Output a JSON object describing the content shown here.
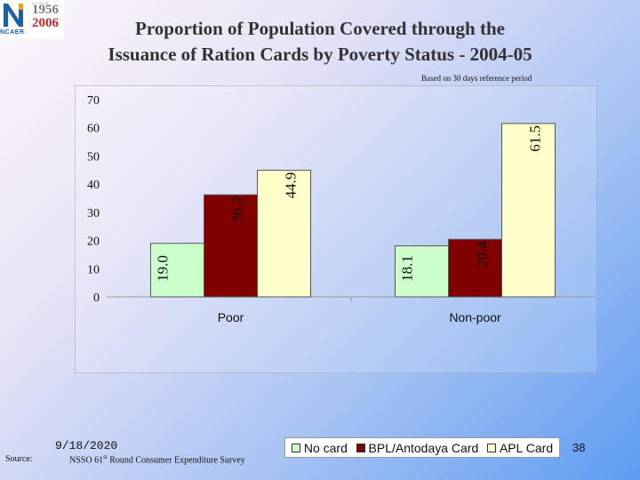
{
  "logo": {
    "org": "NCAER",
    "year_start": "1956",
    "year_end": "2006",
    "tagline": "NCAER"
  },
  "title": {
    "line1": "Proportion of Population Covered through the",
    "line2": "Issuance of Ration Cards by Poverty Status - 2004-05"
  },
  "note": "Based on 30 days reference period",
  "chart_data": {
    "type": "bar",
    "categories": [
      "Poor",
      "Non-poor"
    ],
    "series": [
      {
        "name": "No card",
        "values": [
          19.0,
          18.1
        ],
        "labels": [
          "19.0",
          "18.1"
        ],
        "color": "#ccffcc"
      },
      {
        "name": "BPL/Antodaya Card",
        "values": [
          36.2,
          20.4
        ],
        "labels": [
          "36.2",
          "20.4"
        ],
        "color": "#800000"
      },
      {
        "name": "APL Card",
        "values": [
          44.9,
          61.5
        ],
        "labels": [
          "44.9",
          "61.5"
        ],
        "color": "#ffffcc"
      }
    ],
    "yticks": [
      "0",
      "10",
      "20",
      "30",
      "40",
      "50",
      "60",
      "70"
    ],
    "ylim": [
      0,
      70
    ],
    "xlabel": "",
    "ylabel": "",
    "legend_position": "bottom",
    "grid": false
  },
  "footer": {
    "source_label": "Source:",
    "date": "9/18/2020",
    "survey_prefix": "NSSO 61",
    "survey_sup": "st",
    "survey_suffix": " Round Consumer Expenditure Survey",
    "page_number": "38"
  }
}
